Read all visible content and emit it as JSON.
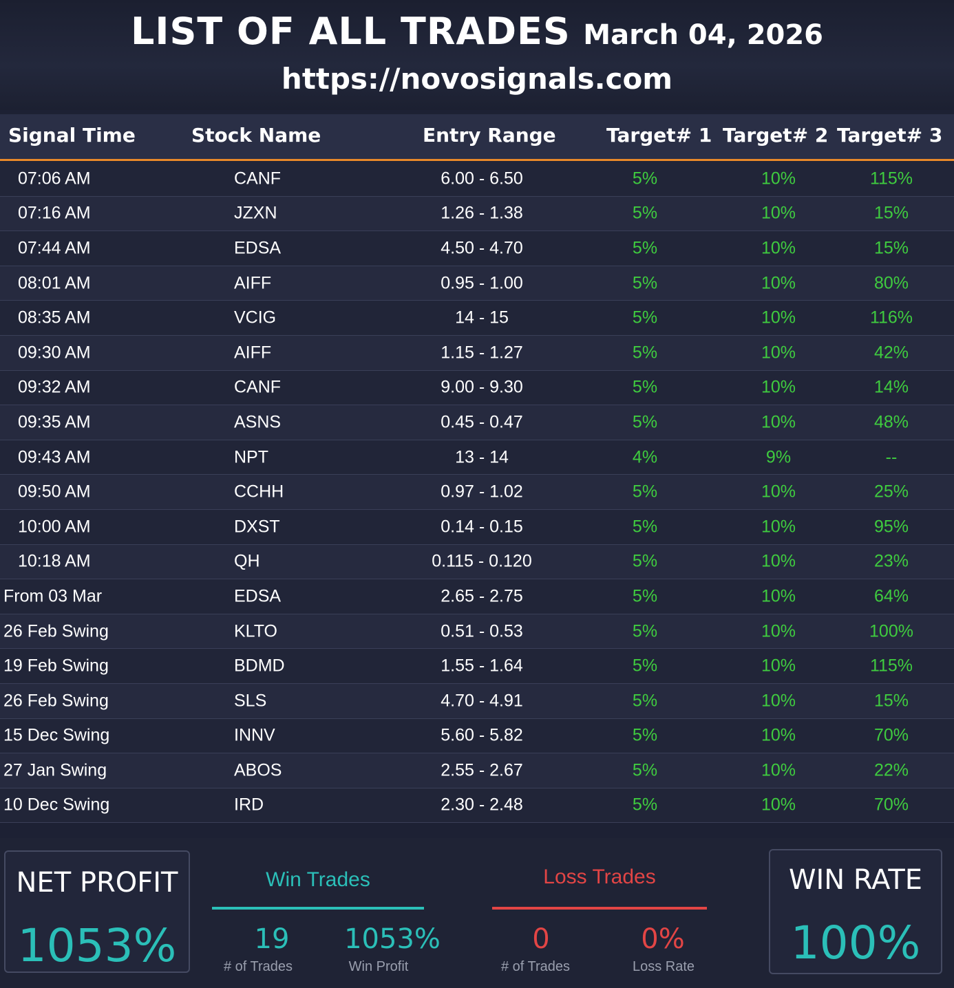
{
  "header": {
    "title": "LIST OF ALL TRADES",
    "date": "March 04, 2026",
    "url": "https://novosignals.com"
  },
  "columns": [
    "Signal Time",
    "Stock Name",
    "Entry Range",
    "Target# 1",
    "Target# 2",
    "Target# 3"
  ],
  "rows": [
    {
      "time": "07:06 AM",
      "stock": "CANF",
      "entry": "6.00 - 6.50",
      "t1": "5%",
      "t2": "10%",
      "t3": "115%"
    },
    {
      "time": "07:16 AM",
      "stock": "JZXN",
      "entry": "1.26 - 1.38",
      "t1": "5%",
      "t2": "10%",
      "t3": "15%"
    },
    {
      "time": "07:44 AM",
      "stock": "EDSA",
      "entry": "4.50 - 4.70",
      "t1": "5%",
      "t2": "10%",
      "t3": "15%"
    },
    {
      "time": "08:01 AM",
      "stock": "AIFF",
      "entry": "0.95 - 1.00",
      "t1": "5%",
      "t2": "10%",
      "t3": "80%"
    },
    {
      "time": "08:35 AM",
      "stock": "VCIG",
      "entry": "14 - 15",
      "t1": "5%",
      "t2": "10%",
      "t3": "116%"
    },
    {
      "time": "09:30 AM",
      "stock": "AIFF",
      "entry": "1.15 - 1.27",
      "t1": "5%",
      "t2": "10%",
      "t3": "42%"
    },
    {
      "time": "09:32 AM",
      "stock": "CANF",
      "entry": "9.00 - 9.30",
      "t1": "5%",
      "t2": "10%",
      "t3": "14%"
    },
    {
      "time": "09:35 AM",
      "stock": "ASNS",
      "entry": "0.45 - 0.47",
      "t1": "5%",
      "t2": "10%",
      "t3": "48%"
    },
    {
      "time": "09:43 AM",
      "stock": "NPT",
      "entry": "13 - 14",
      "t1": "4%",
      "t2": "9%",
      "t3": "--"
    },
    {
      "time": "09:50 AM",
      "stock": "CCHH",
      "entry": "0.97 - 1.02",
      "t1": "5%",
      "t2": "10%",
      "t3": "25%"
    },
    {
      "time": "10:00 AM",
      "stock": "DXST",
      "entry": "0.14 - 0.15",
      "t1": "5%",
      "t2": "10%",
      "t3": "95%"
    },
    {
      "time": "10:18 AM",
      "stock": "QH",
      "entry": "0.115 - 0.120",
      "t1": "5%",
      "t2": "10%",
      "t3": "23%"
    },
    {
      "time": "From  03 Mar",
      "stock": "EDSA",
      "entry": "2.65 - 2.75",
      "t1": "5%",
      "t2": "10%",
      "t3": "64%"
    },
    {
      "time": "26 Feb Swing",
      "stock": "KLTO",
      "entry": "0.51 - 0.53",
      "t1": "5%",
      "t2": "10%",
      "t3": "100%"
    },
    {
      "time": "19 Feb Swing",
      "stock": "BDMD",
      "entry": "1.55 - 1.64",
      "t1": "5%",
      "t2": "10%",
      "t3": "115%"
    },
    {
      "time": "26 Feb Swing",
      "stock": "SLS",
      "entry": "4.70 - 4.91",
      "t1": "5%",
      "t2": "10%",
      "t3": "15%"
    },
    {
      "time": "15 Dec Swing",
      "stock": "INNV",
      "entry": "5.60 - 5.82",
      "t1": "5%",
      "t2": "10%",
      "t3": "70%"
    },
    {
      "time": "27 Jan Swing",
      "stock": "ABOS",
      "entry": "2.55 - 2.67",
      "t1": "5%",
      "t2": "10%",
      "t3": "22%"
    },
    {
      "time": "10 Dec Swing",
      "stock": "IRD",
      "entry": "2.30 - 2.48",
      "t1": "5%",
      "t2": "10%",
      "t3": "70%"
    }
  ],
  "summary": {
    "net_profit_label": "NET PROFIT",
    "net_profit_value": "1053%",
    "win_title": "Win Trades",
    "win_count": "19",
    "win_count_label": "# of Trades",
    "win_profit": "1053%",
    "win_profit_label": "Win Profit",
    "loss_title": "Loss Trades",
    "loss_count": "0",
    "loss_count_label": "# of Trades",
    "loss_rate": "0%",
    "loss_rate_label": "Loss Rate",
    "win_rate_label": "WIN RATE",
    "win_rate_value": "100%"
  },
  "colors": {
    "accent_teal": "#2bbfb8",
    "target_green": "#3fcc3f",
    "loss_red": "#e24545",
    "header_underline": "#e8892a"
  }
}
